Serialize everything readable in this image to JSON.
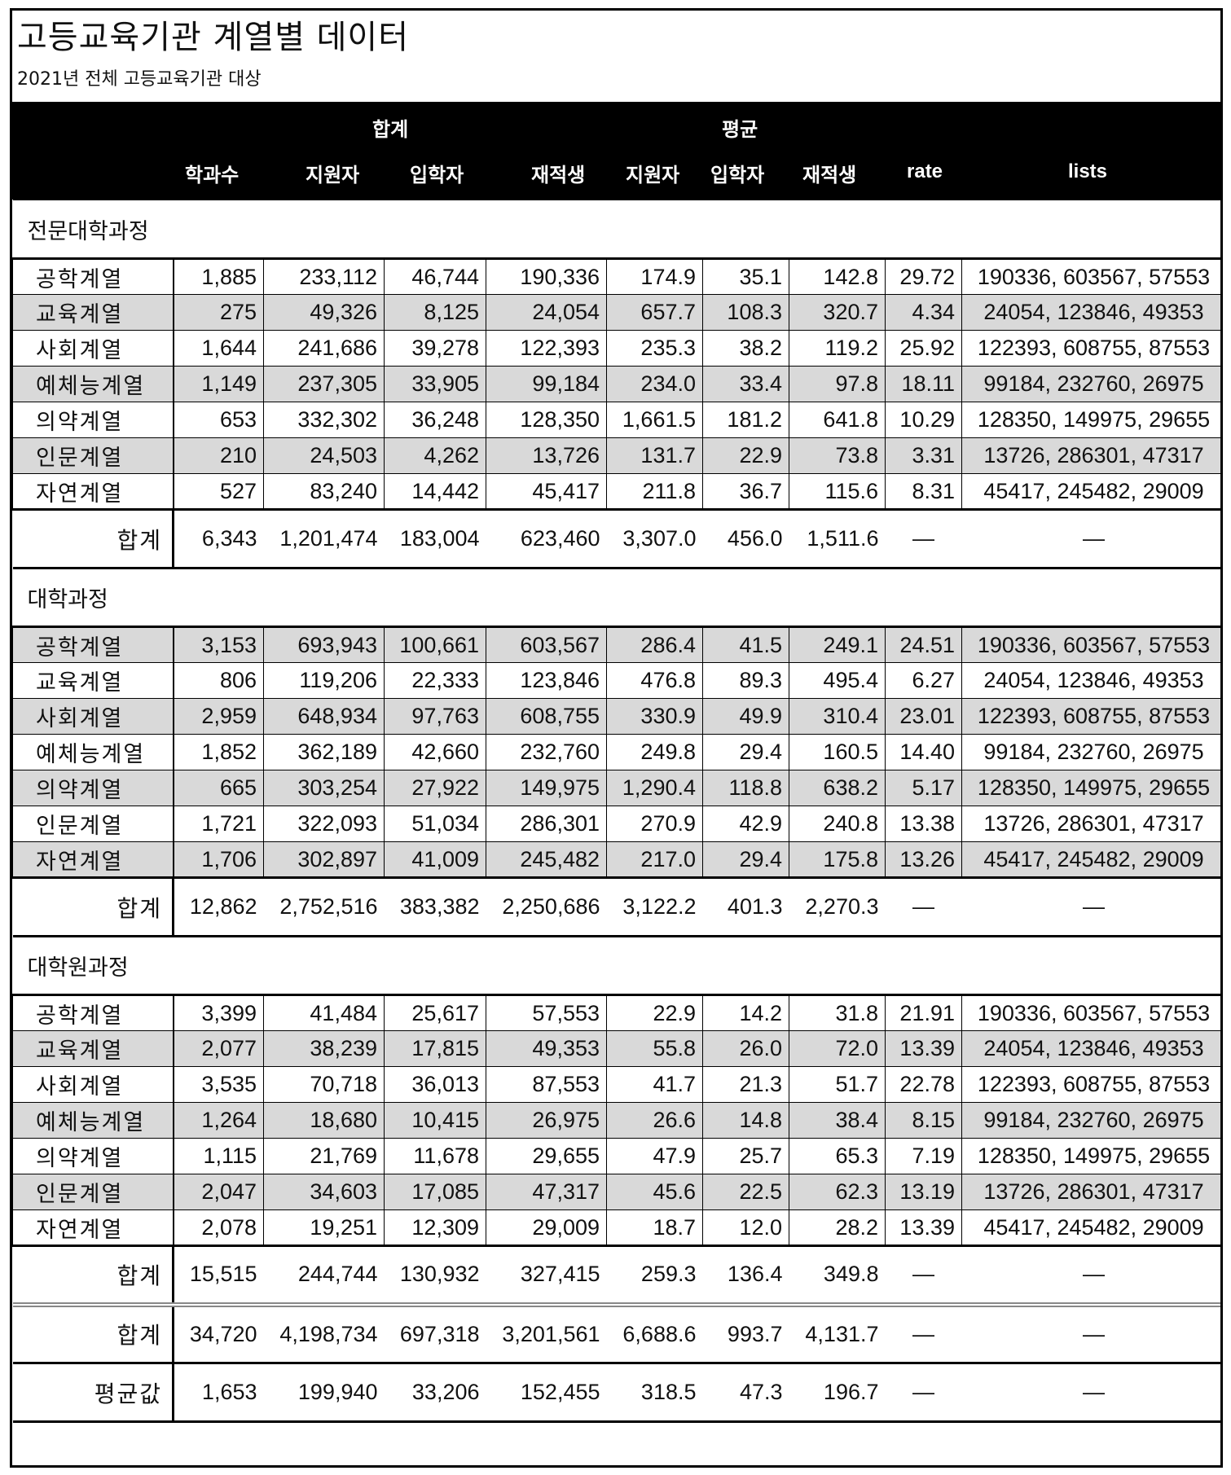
{
  "title": "고등교육기관 계열별 데이터",
  "subtitle": "2021년 전체 고등교육기관 대상",
  "header": {
    "group_sum": "합계",
    "group_avg": "평균",
    "columns": [
      "학과수",
      "지원자",
      "입학자",
      "재적생",
      "지원자",
      "입학자",
      "재적생",
      "rate",
      "lists"
    ]
  },
  "sections": [
    {
      "name": "전문대학과정",
      "rows": [
        {
          "label": "공학계열",
          "cells": [
            "1,885",
            "233,112",
            "46,744",
            "190,336",
            "174.9",
            "35.1",
            "142.8",
            "29.72",
            "190336, 603567, 57553"
          ]
        },
        {
          "label": "교육계열",
          "cells": [
            "275",
            "49,326",
            "8,125",
            "24,054",
            "657.7",
            "108.3",
            "320.7",
            "4.34",
            "24054, 123846, 49353"
          ]
        },
        {
          "label": "사회계열",
          "cells": [
            "1,644",
            "241,686",
            "39,278",
            "122,393",
            "235.3",
            "38.2",
            "119.2",
            "25.92",
            "122393, 608755, 87553"
          ]
        },
        {
          "label": "예체능계열",
          "cells": [
            "1,149",
            "237,305",
            "33,905",
            "99,184",
            "234.0",
            "33.4",
            "97.8",
            "18.11",
            "99184, 232760, 26975"
          ]
        },
        {
          "label": "의약계열",
          "cells": [
            "653",
            "332,302",
            "36,248",
            "128,350",
            "1,661.5",
            "181.2",
            "641.8",
            "10.29",
            "128350, 149975, 29655"
          ]
        },
        {
          "label": "인문계열",
          "cells": [
            "210",
            "24,503",
            "4,262",
            "13,726",
            "131.7",
            "22.9",
            "73.8",
            "3.31",
            "13726, 286301, 47317"
          ]
        },
        {
          "label": "자연계열",
          "cells": [
            "527",
            "83,240",
            "14,442",
            "45,417",
            "211.8",
            "36.7",
            "115.6",
            "8.31",
            "45417, 245482, 29009"
          ]
        }
      ],
      "total": {
        "label": "합계",
        "cells": [
          "6,343",
          "1,201,474",
          "183,004",
          "623,460",
          "3,307.0",
          "456.0",
          "1,511.6",
          "—",
          "—"
        ]
      }
    },
    {
      "name": "대학과정",
      "rows": [
        {
          "label": "공학계열",
          "cells": [
            "3,153",
            "693,943",
            "100,661",
            "603,567",
            "286.4",
            "41.5",
            "249.1",
            "24.51",
            "190336, 603567, 57553"
          ]
        },
        {
          "label": "교육계열",
          "cells": [
            "806",
            "119,206",
            "22,333",
            "123,846",
            "476.8",
            "89.3",
            "495.4",
            "6.27",
            "24054, 123846, 49353"
          ]
        },
        {
          "label": "사회계열",
          "cells": [
            "2,959",
            "648,934",
            "97,763",
            "608,755",
            "330.9",
            "49.9",
            "310.4",
            "23.01",
            "122393, 608755, 87553"
          ]
        },
        {
          "label": "예체능계열",
          "cells": [
            "1,852",
            "362,189",
            "42,660",
            "232,760",
            "249.8",
            "29.4",
            "160.5",
            "14.40",
            "99184, 232760, 26975"
          ]
        },
        {
          "label": "의약계열",
          "cells": [
            "665",
            "303,254",
            "27,922",
            "149,975",
            "1,290.4",
            "118.8",
            "638.2",
            "5.17",
            "128350, 149975, 29655"
          ]
        },
        {
          "label": "인문계열",
          "cells": [
            "1,721",
            "322,093",
            "51,034",
            "286,301",
            "270.9",
            "42.9",
            "240.8",
            "13.38",
            "13726, 286301, 47317"
          ]
        },
        {
          "label": "자연계열",
          "cells": [
            "1,706",
            "302,897",
            "41,009",
            "245,482",
            "217.0",
            "29.4",
            "175.8",
            "13.26",
            "45417, 245482, 29009"
          ]
        }
      ],
      "total": {
        "label": "합계",
        "cells": [
          "12,862",
          "2,752,516",
          "383,382",
          "2,250,686",
          "3,122.2",
          "401.3",
          "2,270.3",
          "—",
          "—"
        ]
      }
    },
    {
      "name": "대학원과정",
      "rows": [
        {
          "label": "공학계열",
          "cells": [
            "3,399",
            "41,484",
            "25,617",
            "57,553",
            "22.9",
            "14.2",
            "31.8",
            "21.91",
            "190336, 603567, 57553"
          ]
        },
        {
          "label": "교육계열",
          "cells": [
            "2,077",
            "38,239",
            "17,815",
            "49,353",
            "55.8",
            "26.0",
            "72.0",
            "13.39",
            "24054, 123846, 49353"
          ]
        },
        {
          "label": "사회계열",
          "cells": [
            "3,535",
            "70,718",
            "36,013",
            "87,553",
            "41.7",
            "21.3",
            "51.7",
            "22.78",
            "122393, 608755, 87553"
          ]
        },
        {
          "label": "예체능계열",
          "cells": [
            "1,264",
            "18,680",
            "10,415",
            "26,975",
            "26.6",
            "14.8",
            "38.4",
            "8.15",
            "99184, 232760, 26975"
          ]
        },
        {
          "label": "의약계열",
          "cells": [
            "1,115",
            "21,769",
            "11,678",
            "29,655",
            "47.9",
            "25.7",
            "65.3",
            "7.19",
            "128350, 149975, 29655"
          ]
        },
        {
          "label": "인문계열",
          "cells": [
            "2,047",
            "34,603",
            "17,085",
            "47,317",
            "45.6",
            "22.5",
            "62.3",
            "13.19",
            "13726, 286301, 47317"
          ]
        },
        {
          "label": "자연계열",
          "cells": [
            "2,078",
            "19,251",
            "12,309",
            "29,009",
            "18.7",
            "12.0",
            "28.2",
            "13.39",
            "45417, 245482, 29009"
          ]
        }
      ],
      "total": {
        "label": "합계",
        "cells": [
          "15,515",
          "244,744",
          "130,932",
          "327,415",
          "259.3",
          "136.4",
          "349.8",
          "—",
          "—"
        ]
      }
    }
  ],
  "grand_total": {
    "label": "합계",
    "cells": [
      "34,720",
      "4,198,734",
      "697,318",
      "3,201,561",
      "6,688.6",
      "993.7",
      "4,131.7",
      "—",
      "—"
    ]
  },
  "average": {
    "label": "평균값",
    "cells": [
      "1,653",
      "199,940",
      "33,206",
      "152,455",
      "318.5",
      "47.3",
      "196.7",
      "—",
      "—"
    ]
  },
  "shading": {
    "band": "#d9d9d9",
    "header_bg": "#000000",
    "header_text": "#ffffff"
  }
}
